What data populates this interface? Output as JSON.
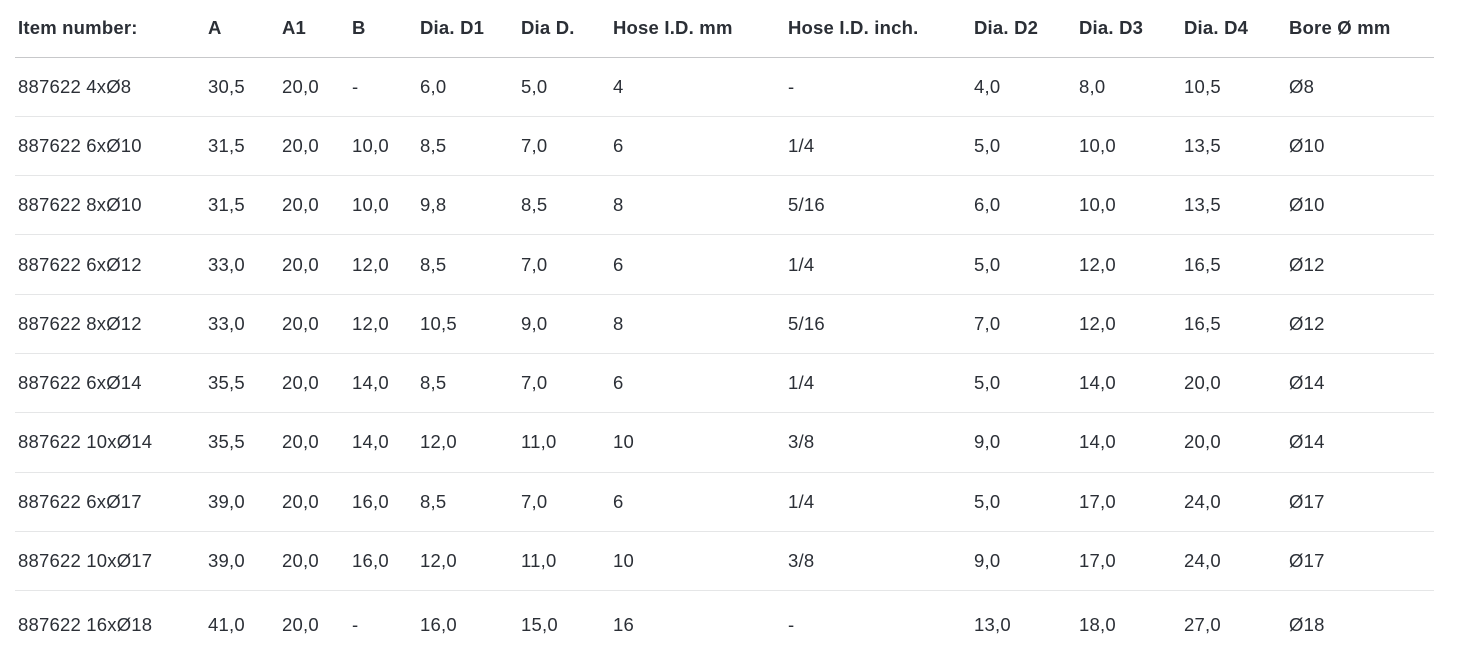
{
  "table": {
    "columns": [
      {
        "label": "Item number:"
      },
      {
        "label": "A"
      },
      {
        "label": "A1"
      },
      {
        "label": "B"
      },
      {
        "label": "Dia. D1"
      },
      {
        "label": "Dia D."
      },
      {
        "label": "Hose I.D. mm"
      },
      {
        "label": "Hose I.D. inch."
      },
      {
        "label": "Dia. D2"
      },
      {
        "label": "Dia. D3"
      },
      {
        "label": "Dia. D4"
      },
      {
        "label": "Bore Ø mm"
      }
    ],
    "rows": [
      [
        "887622 4xØ8",
        "30,5",
        "20,0",
        "-",
        "6,0",
        "5,0",
        "4",
        "-",
        "4,0",
        "8,0",
        "10,5",
        "Ø8"
      ],
      [
        "887622 6xØ10",
        "31,5",
        "20,0",
        "10,0",
        "8,5",
        "7,0",
        "6",
        "1/4",
        "5,0",
        "10,0",
        "13,5",
        "Ø10"
      ],
      [
        "887622 8xØ10",
        "31,5",
        "20,0",
        "10,0",
        "9,8",
        "8,5",
        "8",
        "5/16",
        "6,0",
        "10,0",
        "13,5",
        "Ø10"
      ],
      [
        "887622 6xØ12",
        "33,0",
        "20,0",
        "12,0",
        "8,5",
        "7,0",
        "6",
        "1/4",
        "5,0",
        "12,0",
        "16,5",
        "Ø12"
      ],
      [
        "887622 8xØ12",
        "33,0",
        "20,0",
        "12,0",
        "10,5",
        "9,0",
        "8",
        "5/16",
        "7,0",
        "12,0",
        "16,5",
        "Ø12"
      ],
      [
        "887622 6xØ14",
        "35,5",
        "20,0",
        "14,0",
        "8,5",
        "7,0",
        "6",
        "1/4",
        "5,0",
        "14,0",
        "20,0",
        "Ø14"
      ],
      [
        "887622 10xØ14",
        "35,5",
        "20,0",
        "14,0",
        "12,0",
        "11,0",
        "10",
        "3/8",
        "9,0",
        "14,0",
        "20,0",
        "Ø14"
      ],
      [
        "887622 6xØ17",
        "39,0",
        "20,0",
        "16,0",
        "8,5",
        "7,0",
        "6",
        "1/4",
        "5,0",
        "17,0",
        "24,0",
        "Ø17"
      ],
      [
        "887622 10xØ17",
        "39,0",
        "20,0",
        "16,0",
        "12,0",
        "11,0",
        "10",
        "3/8",
        "9,0",
        "17,0",
        "24,0",
        "Ø17"
      ],
      [
        "887622 16xØ18",
        "41,0",
        "20,0",
        "-",
        "16,0",
        "15,0",
        "16",
        "-",
        "13,0",
        "18,0",
        "27,0",
        "Ø18"
      ]
    ],
    "colors": {
      "text": "#2b2f36",
      "header_divider": "#c7c8ca",
      "row_divider": "#e5e6e7",
      "background": "#ffffff"
    }
  }
}
